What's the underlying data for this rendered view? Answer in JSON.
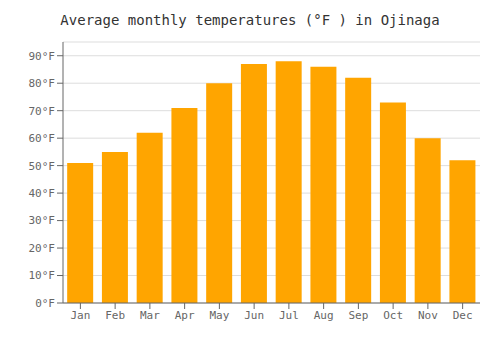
{
  "chart_data": {
    "type": "bar",
    "title": "Average monthly temperatures (°F ) in Ojinaga",
    "categories": [
      "Jan",
      "Feb",
      "Mar",
      "Apr",
      "May",
      "Jun",
      "Jul",
      "Aug",
      "Sep",
      "Oct",
      "Nov",
      "Dec"
    ],
    "values": [
      51,
      55,
      62,
      71,
      80,
      87,
      88,
      86,
      82,
      73,
      60,
      52
    ],
    "color": "#FFA500",
    "ylim": [
      0,
      95
    ],
    "yticks": [
      {
        "value": 0,
        "label": "0°F"
      },
      {
        "value": 10,
        "label": "10°F"
      },
      {
        "value": 20,
        "label": "20°F"
      },
      {
        "value": 30,
        "label": "30°F"
      },
      {
        "value": 40,
        "label": "40°F"
      },
      {
        "value": 50,
        "label": "50°F"
      },
      {
        "value": 60,
        "label": "60°F"
      },
      {
        "value": 70,
        "label": "70°F"
      },
      {
        "value": 80,
        "label": "80°F"
      },
      {
        "value": 90,
        "label": "90°F"
      }
    ],
    "grid": true
  }
}
